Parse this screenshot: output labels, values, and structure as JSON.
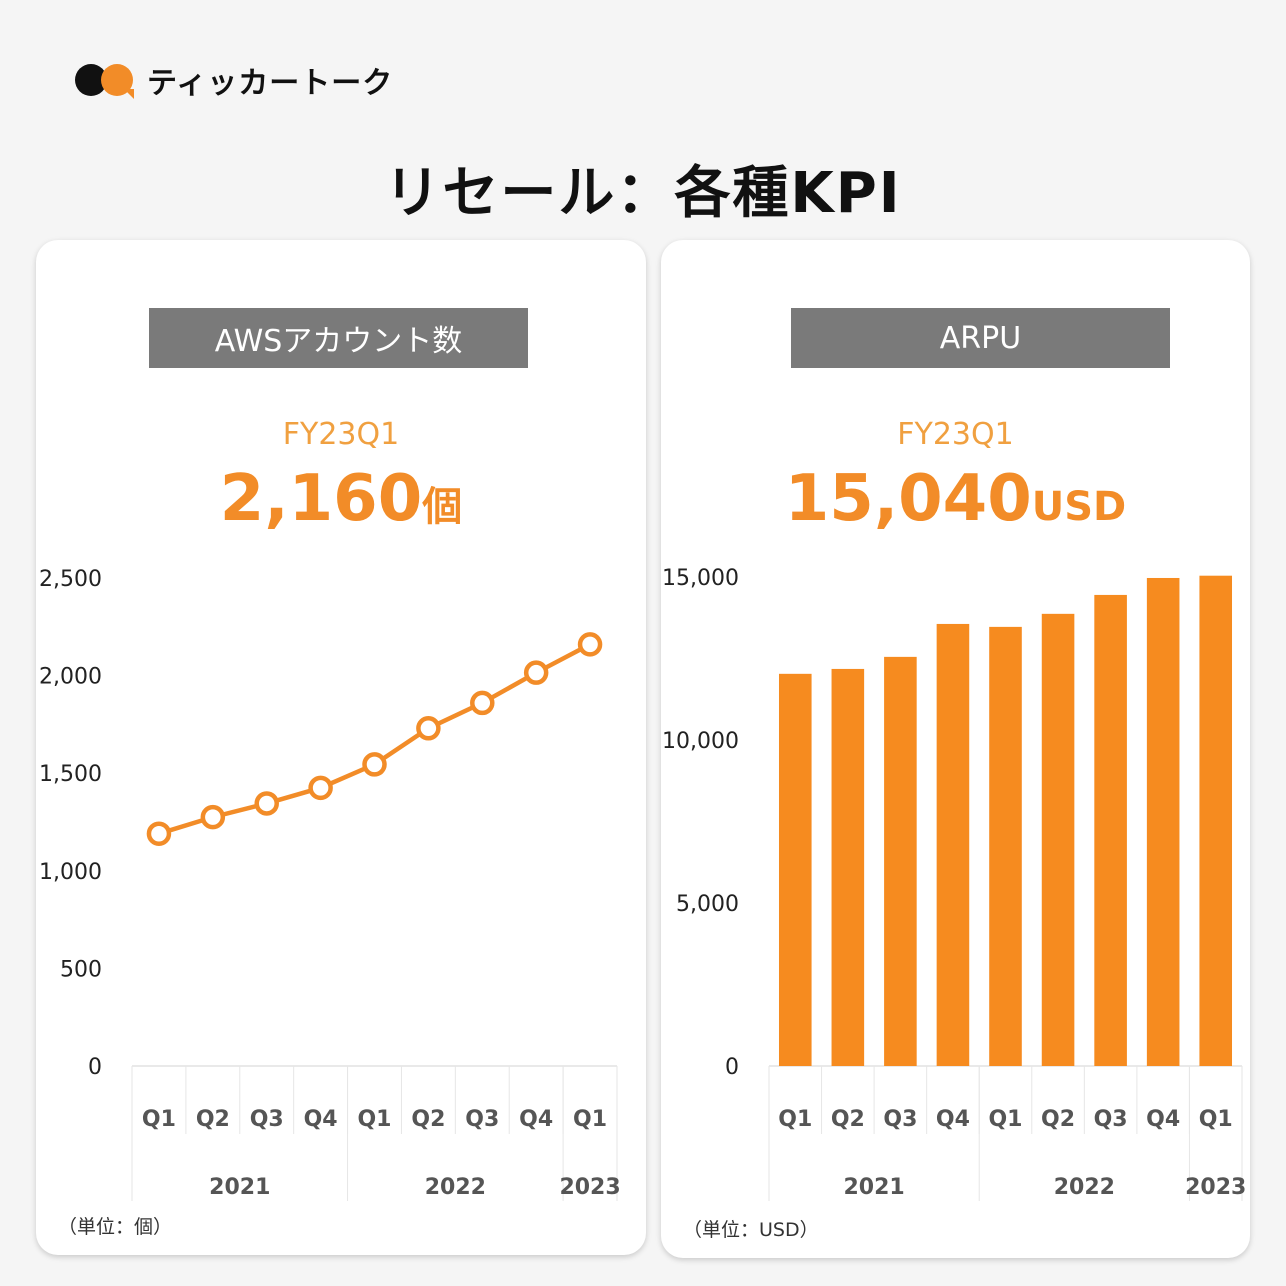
{
  "brand": {
    "name": "ティッカートーク",
    "colors": {
      "accent": "#f28c28",
      "dark": "#111111"
    }
  },
  "page_title": "リセール：各種KPI",
  "cards": [
    {
      "header": "AWSアカウント数",
      "period": "FY23Q1",
      "value": "2,160",
      "unit": "個",
      "unit_note": "（単位：個）"
    },
    {
      "header": "ARPU",
      "period": "FY23Q1",
      "value": "15,040",
      "unit": "USD",
      "unit_note": "（単位：USD）"
    }
  ],
  "chart_data": [
    {
      "type": "line",
      "title": "AWSアカウント数",
      "categories": [
        "Q1",
        "Q2",
        "Q3",
        "Q4",
        "Q1",
        "Q2",
        "Q3",
        "Q4",
        "Q1"
      ],
      "groups": [
        {
          "label": "2021",
          "count": 4
        },
        {
          "label": "2022",
          "count": 4
        },
        {
          "label": "2023",
          "count": 1
        }
      ],
      "values": [
        1190,
        1275,
        1345,
        1425,
        1545,
        1730,
        1860,
        2015,
        2160
      ],
      "yticks": [
        "0",
        "500",
        "1,000",
        "1,500",
        "2,000",
        "2,500"
      ],
      "ylim": [
        0,
        2500
      ],
      "xlabel": "",
      "ylabel": "",
      "color": "#f28c28",
      "grid": false,
      "legend": "none"
    },
    {
      "type": "bar",
      "title": "ARPU",
      "categories": [
        "Q1",
        "Q2",
        "Q3",
        "Q4",
        "Q1",
        "Q2",
        "Q3",
        "Q4",
        "Q1"
      ],
      "groups": [
        {
          "label": "2021",
          "count": 4
        },
        {
          "label": "2022",
          "count": 4
        },
        {
          "label": "2023",
          "count": 1
        }
      ],
      "values": [
        12030,
        12180,
        12550,
        13560,
        13470,
        13870,
        14450,
        14970,
        15040
      ],
      "yticks": [
        "0",
        "5,000",
        "10,000",
        "15,000"
      ],
      "ylim": [
        0,
        15000
      ],
      "xlabel": "",
      "ylabel": "",
      "color": "#f68b1f",
      "grid": false,
      "legend": "none"
    }
  ]
}
